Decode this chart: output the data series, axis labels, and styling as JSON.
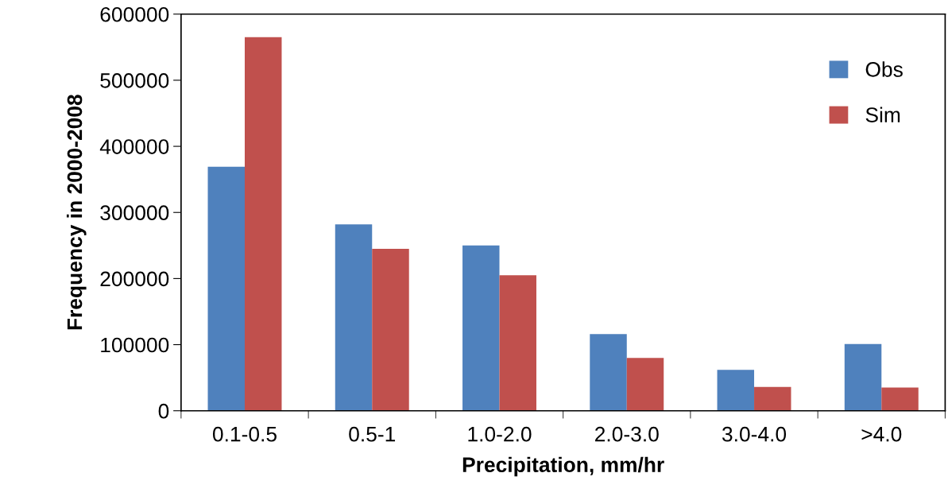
{
  "chart_data": {
    "type": "bar",
    "xlabel": "Precipitation, mm/hr",
    "ylabel": "Frequency in 2000-2008",
    "categories": [
      "0.1-0.5",
      "0.5-1",
      "1.0-2.0",
      "2.0-3.0",
      "3.0-4.0",
      ">4.0"
    ],
    "series": [
      {
        "name": "Obs",
        "color": "#4f81bd",
        "values": [
          369000,
          282000,
          250000,
          116000,
          62000,
          101000
        ]
      },
      {
        "name": "Sim",
        "color": "#c0504d",
        "values": [
          565000,
          245000,
          205000,
          80000,
          36000,
          35000
        ]
      }
    ],
    "ylim": [
      0,
      600000
    ],
    "yticks": [
      0,
      100000,
      200000,
      300000,
      400000,
      500000,
      600000
    ],
    "grid": false,
    "legend": "top right"
  }
}
